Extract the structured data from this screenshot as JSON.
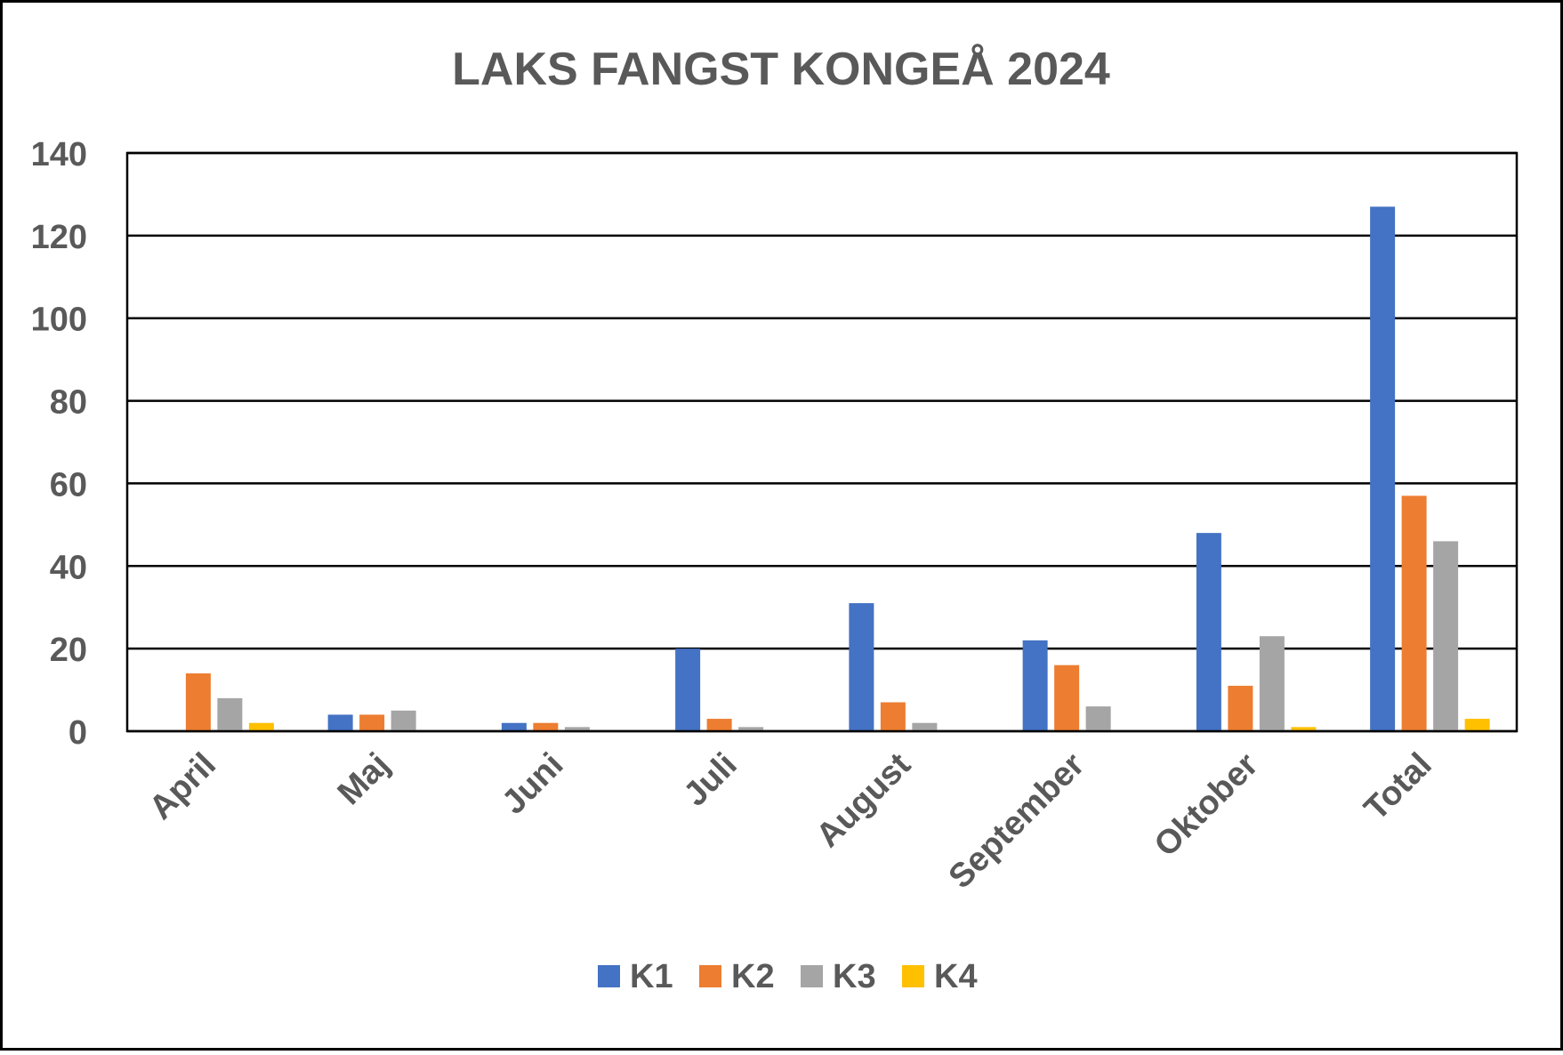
{
  "chart_data": {
    "type": "bar",
    "title": "LAKS FANGST KONGEÅ 2024",
    "xlabel": "",
    "ylabel": "",
    "categories": [
      "April",
      "Maj",
      "Juni",
      "Juli",
      "August",
      "September",
      "Oktober",
      "Total"
    ],
    "series": [
      {
        "name": "K1",
        "color": "#4472C4",
        "values": [
          0,
          4,
          2,
          20,
          31,
          22,
          48,
          127
        ]
      },
      {
        "name": "K2",
        "color": "#ED7D31",
        "values": [
          14,
          4,
          2,
          3,
          7,
          16,
          11,
          57
        ]
      },
      {
        "name": "K3",
        "color": "#A5A5A5",
        "values": [
          8,
          5,
          1,
          1,
          2,
          6,
          23,
          46
        ]
      },
      {
        "name": "K4",
        "color": "#FFC000",
        "values": [
          2,
          0,
          0,
          0,
          0,
          0,
          1,
          3
        ]
      }
    ],
    "ylim": [
      0,
      140
    ],
    "yticks": [
      0,
      20,
      40,
      60,
      80,
      100,
      120,
      140
    ],
    "grid": true,
    "legend_position": "bottom",
    "text_color": "#595959"
  }
}
